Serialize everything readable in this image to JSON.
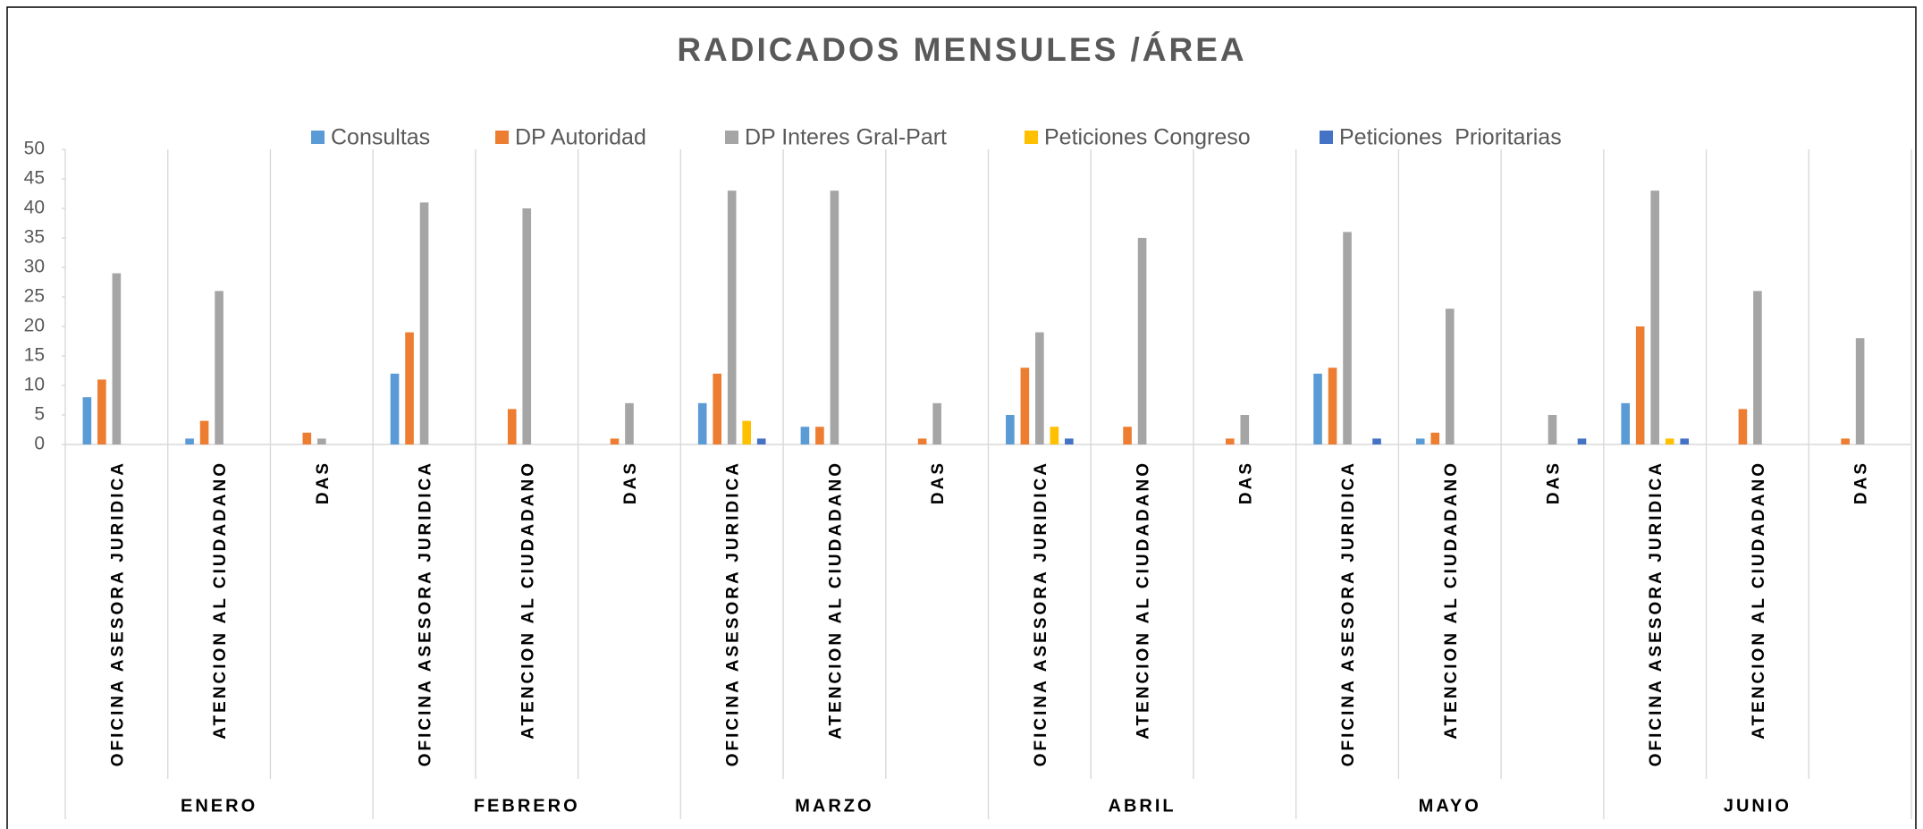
{
  "chart_data": {
    "type": "bar",
    "title": "RADICADOS MENSULES /ÁREA",
    "groups": [
      "ENERO",
      "FEBRERO",
      "MARZO",
      "ABRIL",
      "MAYO",
      "JUNIO"
    ],
    "categories": [
      "OFICINA ASESORA JURIDICA",
      "ATENCION AL CIUDADANO",
      "DAS",
      "OFICINA ASESORA JURIDICA",
      "ATENCION AL CIUDADANO",
      "DAS",
      "OFICINA ASESORA JURIDICA",
      "ATENCION AL CIUDADANO",
      "DAS",
      "OFICINA ASESORA JURIDICA",
      "ATENCION AL CIUDADANO",
      "DAS",
      "OFICINA ASESORA JURIDICA",
      "ATENCION AL CIUDADANO",
      "DAS",
      "OFICINA ASESORA JURIDICA",
      "ATENCION AL CIUDADANO",
      "DAS"
    ],
    "series": [
      {
        "name": "Consultas",
        "color": "#5b9bd5",
        "values": [
          8,
          1,
          0,
          12,
          0,
          0,
          7,
          3,
          0,
          5,
          0,
          0,
          12,
          1,
          0,
          7,
          0,
          0
        ]
      },
      {
        "name": "DP Autoridad",
        "color": "#ed7d31",
        "values": [
          11,
          4,
          2,
          19,
          6,
          1,
          12,
          3,
          1,
          13,
          3,
          1,
          13,
          2,
          0,
          20,
          6,
          1
        ]
      },
      {
        "name": "DP Interes Gral-Part",
        "color": "#a5a5a5",
        "values": [
          29,
          26,
          1,
          41,
          40,
          7,
          43,
          43,
          7,
          19,
          35,
          5,
          36,
          23,
          5,
          43,
          26,
          18
        ]
      },
      {
        "name": "Peticiones Congreso",
        "color": "#ffc000",
        "values": [
          0,
          0,
          0,
          0,
          0,
          0,
          4,
          0,
          0,
          3,
          0,
          0,
          0,
          0,
          0,
          1,
          0,
          0
        ]
      },
      {
        "name": "Peticiones  Prioritarias",
        "color": "#4472c4",
        "values": [
          0,
          0,
          0,
          0,
          0,
          0,
          1,
          0,
          0,
          1,
          0,
          0,
          1,
          0,
          1,
          1,
          0,
          0
        ]
      }
    ],
    "ylim": [
      0,
      50
    ],
    "yticks": [
      0,
      5,
      10,
      15,
      20,
      25,
      30,
      35,
      40,
      45,
      50
    ],
    "grid": false,
    "legend": "top"
  }
}
